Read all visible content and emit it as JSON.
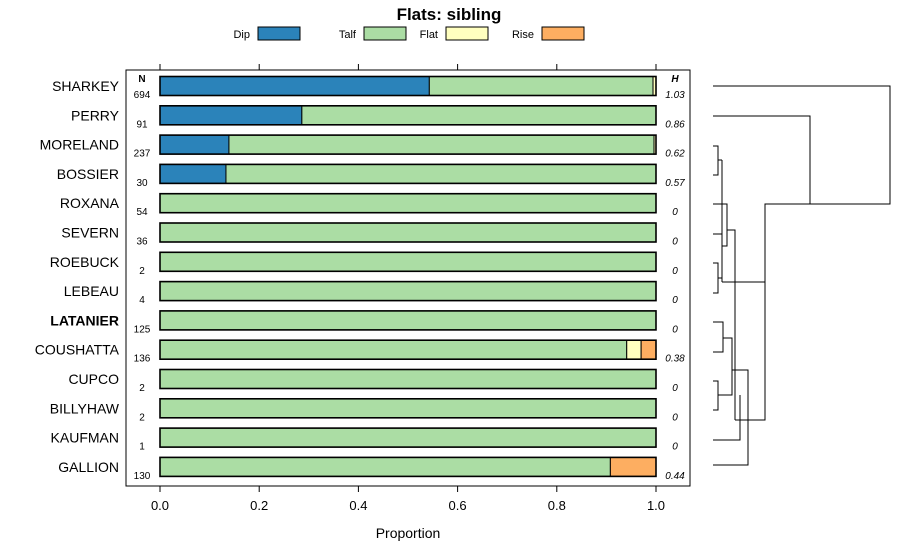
{
  "chart_data": {
    "type": "bar",
    "orientation": "horizontal",
    "stacked": true,
    "title": "Flats: sibling",
    "xlabel": "Proportion",
    "ylabel": "",
    "xlim": [
      0,
      1
    ],
    "xticks": [
      "0.0",
      "0.2",
      "0.4",
      "0.6",
      "0.8",
      "1.0"
    ],
    "n_header": "N",
    "h_header": "H",
    "legend": [
      {
        "name": "Dip",
        "color": "#2B83BA"
      },
      {
        "name": "Talf",
        "color": "#ABDDA4"
      },
      {
        "name": "Flat",
        "color": "#FFFFBF"
      },
      {
        "name": "Rise",
        "color": "#FDAE61"
      }
    ],
    "categories": [
      "SHARKEY",
      "PERRY",
      "MORELAND",
      "BOSSIER",
      "ROXANA",
      "SEVERN",
      "ROEBUCK",
      "LEBEAU",
      "LATANIER",
      "COUSHATTA",
      "CUPCO",
      "BILLYHAW",
      "KAUFMAN",
      "GALLION"
    ],
    "highlight": "LATANIER",
    "n": [
      "694",
      "91",
      "237",
      "30",
      "54",
      "36",
      "2",
      "4",
      "125",
      "136",
      "2",
      "2",
      "1",
      "130"
    ],
    "h": [
      "1.03",
      "0.86",
      "0.62",
      "0.57",
      "0",
      "0",
      "0",
      "0",
      "0",
      "0.38",
      "0",
      "0",
      "0",
      "0.44"
    ],
    "series": [
      {
        "name": "Dip",
        "values": [
          0.543,
          0.286,
          0.139,
          0.133,
          0,
          0,
          0,
          0,
          0,
          0,
          0,
          0,
          0,
          0
        ]
      },
      {
        "name": "Talf",
        "values": [
          0.451,
          0.714,
          0.857,
          0.867,
          1,
          1,
          1,
          1,
          1,
          0.941,
          1,
          1,
          1,
          0.908
        ]
      },
      {
        "name": "Flat",
        "values": [
          0.006,
          0,
          0.004,
          0,
          0,
          0,
          0,
          0,
          0,
          0.029,
          0,
          0,
          0,
          0
        ]
      },
      {
        "name": "Rise",
        "values": [
          0,
          0,
          0,
          0,
          0,
          0,
          0,
          0,
          0,
          0.03,
          0,
          0,
          0,
          0.092
        ]
      }
    ],
    "dendrogram": "hierarchical clustering of soil series (right margin)"
  }
}
